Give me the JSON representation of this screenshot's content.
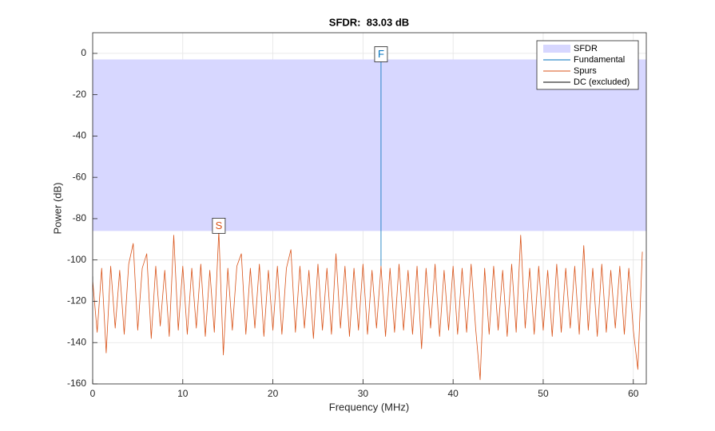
{
  "chart_data": {
    "type": "line",
    "title": "SFDR:  83.03 dB",
    "x_label": "Frequency (MHz)",
    "y_label": "Power (dB)",
    "xlim": [
      0,
      61.44
    ],
    "ylim": [
      -160,
      10
    ],
    "xticks": [
      0,
      10,
      20,
      30,
      40,
      50,
      60
    ],
    "yticks": [
      -160,
      -140,
      -120,
      -100,
      -80,
      -60,
      -40,
      -20,
      0
    ],
    "grid": true,
    "legend": "upper right",
    "series": [
      {
        "name": "SFDR",
        "color": "#d7d7ff",
        "style": "band",
        "values": [
          -85.96,
          -2.93
        ]
      },
      {
        "name": "Fundamental",
        "color": "#0072bd",
        "style": "line",
        "x": [
          32,
          32
        ],
        "values": [
          -103,
          -2.93
        ]
      },
      {
        "name": "Spurs",
        "color": "#d95319",
        "style": "line",
        "x": [
          0,
          0.5,
          1,
          1.5,
          2,
          2.5,
          3,
          3.5,
          4,
          4.5,
          5,
          5.5,
          6,
          6.5,
          7,
          7.5,
          8,
          8.5,
          9,
          9.5,
          10,
          10.5,
          11,
          11.5,
          12,
          12.5,
          13,
          13.5,
          14,
          14.5,
          15,
          15.5,
          16,
          16.5,
          17,
          17.5,
          18,
          18.5,
          19,
          19.5,
          20,
          20.5,
          21,
          21.5,
          22,
          22.5,
          23,
          23.5,
          24,
          24.5,
          25,
          25.5,
          26,
          26.5,
          27,
          27.5,
          28,
          28.5,
          29,
          29.5,
          30,
          30.5,
          31,
          31.5,
          32,
          32.5,
          33,
          33.5,
          34,
          34.5,
          35,
          35.5,
          36,
          36.5,
          37,
          37.5,
          38,
          38.5,
          39,
          39.5,
          40,
          40.5,
          41,
          41.5,
          42,
          42.5,
          43,
          43.5,
          44,
          44.5,
          45,
          45.5,
          46,
          46.5,
          47,
          47.5,
          48,
          48.5,
          49,
          49.5,
          50,
          50.5,
          51,
          51.5,
          52,
          52.5,
          53,
          53.5,
          54,
          54.5,
          55,
          55.5,
          56,
          56.5,
          57,
          57.5,
          58,
          58.5,
          59,
          59.5,
          60,
          60.5,
          61
        ],
        "values": [
          -110,
          -135,
          -104,
          -145,
          -103,
          -133,
          -105,
          -136,
          -102,
          -92,
          -134,
          -104,
          -97,
          -138,
          -103,
          -132,
          -105,
          -137,
          -88,
          -134,
          -103,
          -136,
          -104,
          -133,
          -102,
          -137,
          -105,
          -135,
          -85.96,
          -146,
          -104,
          -134,
          -103,
          -97,
          -136,
          -104,
          -133,
          -102,
          -137,
          -105,
          -134,
          -103,
          -136,
          -104,
          -95,
          -135,
          -103,
          -133,
          -105,
          -138,
          -102,
          -134,
          -104,
          -136,
          -97,
          -133,
          -103,
          -137,
          -104,
          -134,
          -102,
          -136,
          -105,
          -133,
          -103,
          -137,
          -104,
          -135,
          -102,
          -134,
          -105,
          -136,
          -103,
          -143,
          -104,
          -133,
          -102,
          -137,
          -105,
          -134,
          -103,
          -136,
          -104,
          -135,
          -102,
          -133,
          -158,
          -104,
          -136,
          -103,
          -134,
          -105,
          -137,
          -102,
          -135,
          -88,
          -133,
          -104,
          -136,
          -103,
          -134,
          -105,
          -137,
          -102,
          -135,
          -104,
          -133,
          -103,
          -136,
          -93,
          -134,
          -104,
          -137,
          -102,
          -135,
          -105,
          -133,
          -103,
          -136,
          -104,
          -134,
          -153,
          -96
        ]
      },
      {
        "name": "DC (excluded)",
        "color": "#000000",
        "style": "line",
        "x": [
          0,
          0
        ],
        "values": [
          -108,
          -113
        ]
      }
    ],
    "annotations": [
      {
        "label": "F",
        "x": 32,
        "y": -2.93,
        "color": "#0072bd"
      },
      {
        "label": "S",
        "x": 14,
        "y": -85.96,
        "color": "#d95319"
      }
    ]
  }
}
